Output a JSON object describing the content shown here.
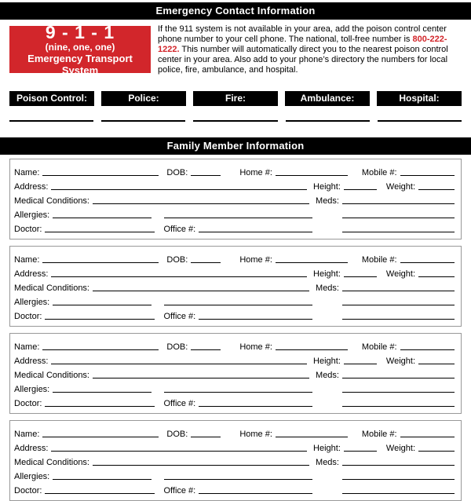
{
  "header": {
    "title": "Emergency Contact Information"
  },
  "emergency_box": {
    "number": "9 - 1 - 1",
    "subtitle": "(nine, one, one)",
    "caption": "Emergency Transport System",
    "bg_color": "#d2262b"
  },
  "intro": {
    "text_before": "If the 911 system is not available in your area, add the poison control center phone number to your cell phone. The national, toll-free number is ",
    "phone": "800-222-1222.",
    "text_after": " This number will automatically direct you to the nearest poison control center in your area. Also add to your phone’s directory the numbers for local police, fire, ambulance, and hospital.",
    "phone_color": "#d2262b"
  },
  "contact_labels": [
    {
      "label": "Poison Control:"
    },
    {
      "label": "Police:"
    },
    {
      "label": "Fire:"
    },
    {
      "label": "Ambulance:"
    },
    {
      "label": "Hospital:"
    }
  ],
  "family_section": {
    "title": "Family Member Information"
  },
  "member_form": {
    "name_label": "Name:",
    "dob_label": "DOB:",
    "home_label": "Home #:",
    "mobile_label": "Mobile #:",
    "address_label": "Address:",
    "height_label": "Height:",
    "weight_label": "Weight:",
    "medical_label": "Medical Conditions:",
    "meds_label": "Meds:",
    "allergies_label": "Allergies:",
    "doctor_label": "Doctor:",
    "office_label": "Office #:"
  },
  "member_count": 4,
  "colors": {
    "bar_background": "#000000",
    "bar_text": "#ffffff",
    "accent_red": "#d2262b",
    "block_border": "#999999"
  }
}
